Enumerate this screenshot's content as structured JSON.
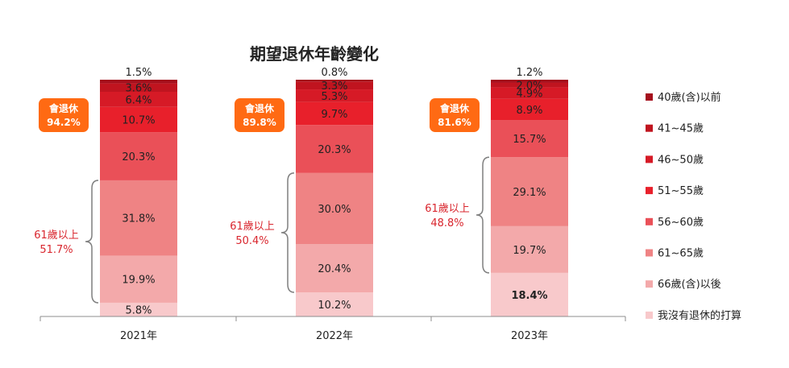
{
  "chart_data": {
    "type": "bar",
    "stacked": true,
    "title": "期望退休年齡變化",
    "categories": [
      "2021年",
      "2022年",
      "2023年"
    ],
    "series": [
      {
        "name": "40歲(含)以前",
        "color": "#a50f1c",
        "values": [
          1.5,
          0.8,
          1.2
        ],
        "labels": [
          "1.5%",
          "0.8%",
          "1.2%"
        ]
      },
      {
        "name": "41~45歲",
        "color": "#c0141f",
        "values": [
          3.6,
          3.3,
          2.0
        ],
        "labels": [
          "3.6%",
          "3.3%",
          "2.0%"
        ]
      },
      {
        "name": "46~50歲",
        "color": "#d61a26",
        "values": [
          6.4,
          5.3,
          4.9
        ],
        "labels": [
          "6.4%",
          "5.3%",
          "4.9%"
        ]
      },
      {
        "name": "51~55歲",
        "color": "#e8202b",
        "values": [
          10.7,
          9.7,
          8.9
        ],
        "labels": [
          "10.7%",
          "9.7%",
          "8.9%"
        ]
      },
      {
        "name": "56~60歲",
        "color": "#ea5058",
        "values": [
          20.3,
          20.3,
          15.7
        ],
        "labels": [
          "20.3%",
          "20.3%",
          "15.7%"
        ]
      },
      {
        "name": "61~65歲",
        "color": "#ef8384",
        "values": [
          31.8,
          30.0,
          29.1
        ],
        "labels": [
          "31.8%",
          "30.0%",
          "29.1%"
        ]
      },
      {
        "name": "66歲(含)以後",
        "color": "#f3a9aa",
        "values": [
          19.9,
          20.4,
          19.7
        ],
        "labels": [
          "19.9%",
          "20.4%",
          "19.7%"
        ]
      },
      {
        "name": "我沒有退休的打算",
        "color": "#f8c9cb",
        "values": [
          5.8,
          10.2,
          18.4
        ],
        "labels": [
          "5.8%",
          "10.2%",
          "18.4%"
        ]
      }
    ],
    "callouts": [
      {
        "label": "會退休",
        "value": "94.2%"
      },
      {
        "label": "會退休",
        "value": "89.8%"
      },
      {
        "label": "會退休",
        "value": "81.6%"
      }
    ],
    "group_brackets": [
      {
        "label": "61歲以上",
        "value": "51.7%"
      },
      {
        "label": "61歲以上",
        "value": "50.4%"
      },
      {
        "label": "61歲以上",
        "value": "48.8%"
      }
    ],
    "legend_position": "right",
    "grid": false
  }
}
